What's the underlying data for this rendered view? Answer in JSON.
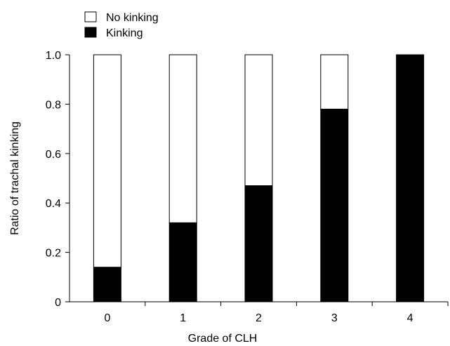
{
  "chart_data": {
    "type": "bar",
    "stacked": true,
    "categories": [
      "0",
      "1",
      "2",
      "3",
      "4"
    ],
    "series": [
      {
        "name": "Kinking",
        "values": [
          0.14,
          0.32,
          0.47,
          0.78,
          1.0
        ],
        "color": "#000000"
      },
      {
        "name": "No kinking",
        "values": [
          0.86,
          0.68,
          0.53,
          0.22,
          0.0
        ],
        "color": "#ffffff"
      }
    ],
    "xlabel": "Grade of CLH",
    "ylabel": "Ratio of trachal kinking",
    "ylim": [
      0,
      1.0
    ],
    "yticks": [
      "0",
      "0.2",
      "0.4",
      "0.6",
      "0.8",
      "1.0"
    ],
    "grid": false,
    "legend": {
      "placement": "top-left",
      "entries": [
        {
          "label": "No kinking",
          "color": "#ffffff"
        },
        {
          "label": "Kinking",
          "color": "#000000"
        }
      ]
    }
  }
}
